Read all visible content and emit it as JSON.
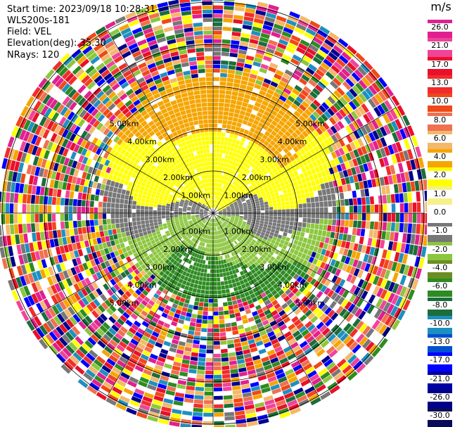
{
  "header": {
    "start_time": "Start time: 2023/09/18 10:28:31",
    "instrument": "WLS200s-181",
    "field": "Field: VEL",
    "elevation": "Elevation(deg): 35.30",
    "nrays": "NRays: 120"
  },
  "colorbar": {
    "unit": "m/s",
    "ticks": [
      "26.0",
      "21.0",
      "17.0",
      "13.0",
      "10.0",
      "8.0",
      "6.0",
      "4.0",
      "2.0",
      "1.0",
      "0.0",
      "-1.0",
      "-2.0",
      "-4.0",
      "-6.0",
      "-8.0",
      "-10.0",
      "-13.0",
      "-17.0",
      "-21.0",
      "-26.0",
      "-30.0"
    ],
    "colors": [
      "#e0208f",
      "#f0449a",
      "#e8102a",
      "#f22c2c",
      "#f04818",
      "#f07050",
      "#f4b86a",
      "#f5a500",
      "#ffff00",
      "#f5f08a",
      "#ffffff",
      "#777777",
      "#8cc63f",
      "#6b8e23",
      "#2e8b22",
      "#1a6e3a",
      "#1e90c0",
      "#0050d0",
      "#0000ff",
      "#0000a0",
      "#00008b",
      "#0a0a5a"
    ]
  },
  "ring_labels": [
    "1.00km",
    "2.00km",
    "3.00km",
    "4.00km",
    "5.00km"
  ],
  "palette": {
    "noise": [
      "#e0208f",
      "#f0449a",
      "#e8102a",
      "#f22c2c",
      "#f04818",
      "#f07050",
      "#f5a500",
      "#ffff00",
      "#777777",
      "#8cc63f",
      "#2e8b22",
      "#1a6e3a",
      "#1e90c0",
      "#0000ff",
      "#00008b",
      "#ffffff",
      "#f4b86a"
    ],
    "yellow": "#ffff00",
    "orange": "#f5a500",
    "gray": "#777777",
    "lightgreen": "#8cc63f",
    "green": "#2e8b22"
  }
}
